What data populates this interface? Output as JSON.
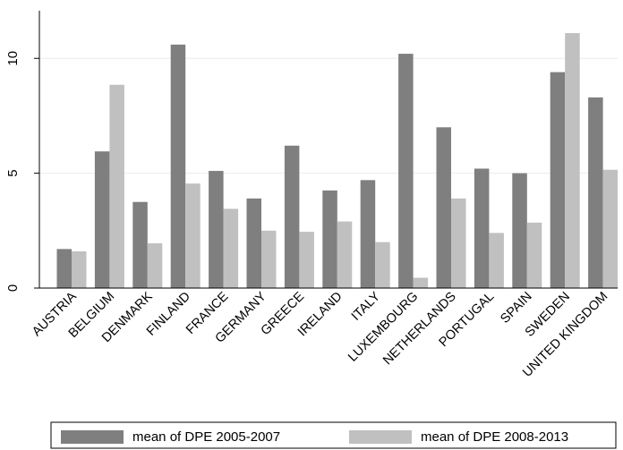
{
  "chart_data": {
    "type": "bar",
    "categories": [
      "AUSTRIA",
      "BELGIUM",
      "DENMARK",
      "FINLAND",
      "FRANCE",
      "GERMANY",
      "GREECE",
      "IRELAND",
      "ITALY",
      "LUXEMBOURG",
      "NETHERLANDS",
      "PORTUGAL",
      "SPAIN",
      "SWEDEN",
      "UNITED KINGDOM"
    ],
    "series": [
      {
        "name": "mean of DPE 2005-2007",
        "color": "#7f7f7f",
        "values": [
          1.7,
          5.95,
          3.75,
          10.6,
          5.1,
          3.9,
          6.2,
          4.25,
          4.7,
          10.2,
          7.0,
          5.2,
          5.0,
          9.4,
          8.3
        ]
      },
      {
        "name": "mean of DPE 2008-2013",
        "color": "#c0c0c0",
        "values": [
          1.6,
          8.85,
          1.95,
          4.55,
          3.45,
          2.5,
          2.45,
          2.9,
          2.0,
          0.45,
          3.9,
          2.4,
          2.85,
          11.1,
          5.15
        ]
      }
    ],
    "yticks": [
      0,
      5,
      10
    ],
    "ylim": [
      0,
      11.1
    ],
    "grid": true,
    "legend_position": "bottom"
  }
}
